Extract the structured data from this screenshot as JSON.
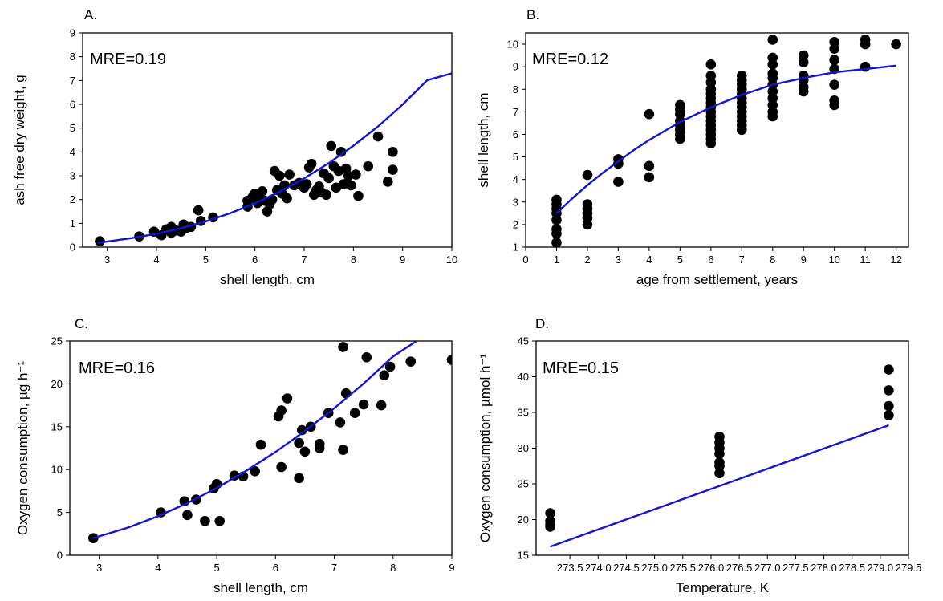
{
  "chart_data": [
    {
      "type": "scatter",
      "panel": "A.",
      "annotation": "MRE=0.19",
      "xlabel": "shell length, cm",
      "ylabel": "ash free dry weight, g",
      "xlim": [
        2.5,
        10
      ],
      "ylim": [
        0,
        9
      ],
      "xticks": [
        3,
        4,
        5,
        6,
        7,
        8,
        9,
        10
      ],
      "yticks": [
        0,
        1,
        2,
        3,
        4,
        5,
        6,
        7,
        8,
        9
      ],
      "colors": {
        "points": "#000000",
        "fit": "#1414d2"
      },
      "points": [
        [
          2.85,
          0.25
        ],
        [
          3.65,
          0.45
        ],
        [
          3.95,
          0.65
        ],
        [
          4.1,
          0.5
        ],
        [
          4.2,
          0.75
        ],
        [
          4.3,
          0.6
        ],
        [
          4.3,
          0.85
        ],
        [
          4.4,
          0.7
        ],
        [
          4.5,
          0.65
        ],
        [
          4.55,
          0.95
        ],
        [
          4.6,
          0.8
        ],
        [
          4.7,
          0.85
        ],
        [
          4.85,
          1.55
        ],
        [
          4.9,
          1.1
        ],
        [
          5.15,
          1.25
        ],
        [
          5.85,
          1.7
        ],
        [
          5.85,
          1.95
        ],
        [
          5.95,
          2.1
        ],
        [
          6.0,
          2.25
        ],
        [
          6.05,
          1.85
        ],
        [
          6.1,
          2.1
        ],
        [
          6.15,
          2.35
        ],
        [
          6.2,
          1.95
        ],
        [
          6.25,
          1.5
        ],
        [
          6.3,
          1.8
        ],
        [
          6.35,
          2.0
        ],
        [
          6.4,
          3.2
        ],
        [
          6.45,
          2.4
        ],
        [
          6.5,
          3.0
        ],
        [
          6.55,
          2.25
        ],
        [
          6.6,
          2.6
        ],
        [
          6.65,
          2.05
        ],
        [
          6.7,
          3.05
        ],
        [
          6.8,
          2.6
        ],
        [
          6.9,
          2.7
        ],
        [
          7.0,
          2.5
        ],
        [
          7.05,
          2.65
        ],
        [
          7.1,
          3.35
        ],
        [
          7.15,
          3.5
        ],
        [
          7.2,
          2.2
        ],
        [
          7.25,
          2.4
        ],
        [
          7.3,
          2.55
        ],
        [
          7.35,
          2.3
        ],
        [
          7.4,
          3.1
        ],
        [
          7.45,
          2.2
        ],
        [
          7.5,
          2.9
        ],
        [
          7.55,
          4.25
        ],
        [
          7.6,
          3.4
        ],
        [
          7.65,
          2.5
        ],
        [
          7.7,
          3.2
        ],
        [
          7.75,
          4.0
        ],
        [
          7.8,
          2.65
        ],
        [
          7.85,
          3.3
        ],
        [
          7.9,
          3.0
        ],
        [
          7.95,
          2.6
        ],
        [
          8.05,
          3.05
        ],
        [
          8.1,
          2.15
        ],
        [
          8.3,
          3.4
        ],
        [
          8.5,
          4.65
        ],
        [
          8.7,
          2.75
        ],
        [
          8.8,
          4.0
        ],
        [
          8.8,
          3.25
        ]
      ],
      "fit": {
        "x": [
          2.8,
          3.5,
          4,
          4.5,
          5,
          5.5,
          6,
          6.5,
          7,
          7.5,
          8,
          8.5,
          9,
          9.5,
          10
        ],
        "y": [
          0.18,
          0.38,
          0.56,
          0.8,
          1.08,
          1.43,
          1.84,
          2.33,
          2.89,
          3.53,
          4.26,
          5.07,
          5.99,
          7.01,
          7.3
        ]
      }
    },
    {
      "type": "scatter",
      "panel": "B.",
      "annotation": "MRE=0.12",
      "xlabel": "age from settlement, years",
      "ylabel": "shell length, cm",
      "xlim": [
        0,
        12.4
      ],
      "ylim": [
        1,
        10.5
      ],
      "xticks": [
        0,
        1,
        2,
        3,
        4,
        5,
        6,
        7,
        8,
        9,
        10,
        11,
        12
      ],
      "yticks": [
        1,
        2,
        3,
        4,
        5,
        6,
        7,
        8,
        9,
        10
      ],
      "colors": {
        "points": "#000000",
        "fit": "#1414d2"
      },
      "points": [
        [
          1,
          1.2
        ],
        [
          1,
          1.6
        ],
        [
          1,
          1.8
        ],
        [
          1,
          2.2
        ],
        [
          1,
          2.5
        ],
        [
          1,
          2.7
        ],
        [
          1,
          2.9
        ],
        [
          1,
          3.1
        ],
        [
          2,
          2.0
        ],
        [
          2,
          2.3
        ],
        [
          2,
          2.5
        ],
        [
          2,
          2.7
        ],
        [
          2,
          2.9
        ],
        [
          2,
          4.2
        ],
        [
          3,
          3.9
        ],
        [
          3,
          4.7
        ],
        [
          3,
          4.9
        ],
        [
          4,
          4.1
        ],
        [
          4,
          4.6
        ],
        [
          4,
          6.9
        ],
        [
          5,
          5.8
        ],
        [
          5,
          6.0
        ],
        [
          5,
          6.2
        ],
        [
          5,
          6.4
        ],
        [
          5,
          6.6
        ],
        [
          5,
          6.9
        ],
        [
          5,
          7.1
        ],
        [
          5,
          7.3
        ],
        [
          6,
          5.6
        ],
        [
          6,
          5.8
        ],
        [
          6,
          6.0
        ],
        [
          6,
          6.2
        ],
        [
          6,
          6.4
        ],
        [
          6,
          6.6
        ],
        [
          6,
          6.8
        ],
        [
          6,
          7.0
        ],
        [
          6,
          7.2
        ],
        [
          6,
          7.4
        ],
        [
          6,
          7.6
        ],
        [
          6,
          7.8
        ],
        [
          6,
          8.0
        ],
        [
          6,
          8.3
        ],
        [
          6,
          8.6
        ],
        [
          6,
          9.1
        ],
        [
          7,
          6.2
        ],
        [
          7,
          6.4
        ],
        [
          7,
          6.6
        ],
        [
          7,
          6.8
        ],
        [
          7,
          7.0
        ],
        [
          7,
          7.2
        ],
        [
          7,
          7.4
        ],
        [
          7,
          7.6
        ],
        [
          7,
          7.8
        ],
        [
          7,
          8.0
        ],
        [
          7,
          8.2
        ],
        [
          7,
          8.4
        ],
        [
          7,
          8.6
        ],
        [
          8,
          6.8
        ],
        [
          8,
          7.0
        ],
        [
          8,
          7.3
        ],
        [
          8,
          7.6
        ],
        [
          8,
          7.9
        ],
        [
          8,
          8.2
        ],
        [
          8,
          8.5
        ],
        [
          8,
          8.7
        ],
        [
          8,
          9.1
        ],
        [
          8,
          9.4
        ],
        [
          8,
          10.2
        ],
        [
          9,
          7.9
        ],
        [
          9,
          8.1
        ],
        [
          9,
          8.4
        ],
        [
          9,
          8.6
        ],
        [
          9,
          9.2
        ],
        [
          9,
          9.5
        ],
        [
          10,
          7.3
        ],
        [
          10,
          7.5
        ],
        [
          10,
          8.2
        ],
        [
          10,
          8.9
        ],
        [
          10,
          9.3
        ],
        [
          10,
          9.8
        ],
        [
          10,
          10.1
        ],
        [
          11,
          9.0
        ],
        [
          11,
          10.0
        ],
        [
          11,
          10.2
        ],
        [
          12,
          10.0
        ]
      ],
      "fit": {
        "x": [
          1,
          1.5,
          2,
          2.5,
          3,
          3.5,
          4,
          5,
          6,
          7,
          8,
          9,
          10,
          11,
          12
        ],
        "y": [
          2.5,
          3.15,
          3.75,
          4.3,
          4.8,
          5.3,
          5.75,
          6.55,
          7.2,
          7.75,
          8.2,
          8.5,
          8.75,
          8.9,
          9.05
        ]
      }
    },
    {
      "type": "scatter",
      "panel": "C.",
      "annotation": "MRE=0.16",
      "xlabel": "shell length, cm",
      "ylabel": "Oxygen consumption, µg h⁻¹",
      "xlim": [
        2.5,
        9
      ],
      "ylim": [
        0,
        25
      ],
      "xticks": [
        3,
        4,
        5,
        6,
        7,
        8,
        9
      ],
      "yticks": [
        0,
        5,
        10,
        15,
        20,
        25
      ],
      "colors": {
        "points": "#000000",
        "fit": "#1414d2"
      },
      "points": [
        [
          2.9,
          2.0
        ],
        [
          4.05,
          5.0
        ],
        [
          4.45,
          6.3
        ],
        [
          4.5,
          4.7
        ],
        [
          4.65,
          6.5
        ],
        [
          4.8,
          4.0
        ],
        [
          4.95,
          7.8
        ],
        [
          5.0,
          8.3
        ],
        [
          5.05,
          4.0
        ],
        [
          5.3,
          9.3
        ],
        [
          5.45,
          9.2
        ],
        [
          5.65,
          9.8
        ],
        [
          5.75,
          12.9
        ],
        [
          6.05,
          16.2
        ],
        [
          6.1,
          10.3
        ],
        [
          6.1,
          16.9
        ],
        [
          6.2,
          18.3
        ],
        [
          6.4,
          13.1
        ],
        [
          6.4,
          9.0
        ],
        [
          6.45,
          14.6
        ],
        [
          6.5,
          12.1
        ],
        [
          6.6,
          15.0
        ],
        [
          6.75,
          13.0
        ],
        [
          6.75,
          12.5
        ],
        [
          6.9,
          16.6
        ],
        [
          7.1,
          15.5
        ],
        [
          7.15,
          12.3
        ],
        [
          7.15,
          24.3
        ],
        [
          7.2,
          18.9
        ],
        [
          7.35,
          16.6
        ],
        [
          7.5,
          17.6
        ],
        [
          7.55,
          23.1
        ],
        [
          7.8,
          17.5
        ],
        [
          7.85,
          21.0
        ],
        [
          7.95,
          22.0
        ],
        [
          8.3,
          22.6
        ],
        [
          9.0,
          22.8
        ]
      ],
      "fit": {
        "x": [
          2.9,
          3.5,
          4,
          4.5,
          5,
          5.5,
          6,
          6.5,
          7,
          7.5,
          8,
          8.4
        ],
        "y": [
          2.0,
          3.25,
          4.55,
          6.1,
          7.85,
          9.85,
          12.05,
          14.5,
          17.15,
          20.05,
          23.2,
          25.0
        ]
      }
    },
    {
      "type": "scatter",
      "panel": "D.",
      "annotation": "MRE=0.15",
      "xlabel": "Temperature, K",
      "ylabel": "Oxygen consumption, µmol h⁻¹",
      "xlim": [
        272.9,
        279.5
      ],
      "ylim": [
        15,
        45
      ],
      "xticks": [
        "273.5",
        "274.0",
        "274.5",
        "275.0",
        "275.5",
        "276.0",
        "276.5",
        "277.0",
        "277.5",
        "278.0",
        "278.5",
        "279.0",
        "279.5"
      ],
      "yticks": [
        15,
        20,
        25,
        30,
        35,
        40,
        45
      ],
      "colors": {
        "points": "#000000",
        "fit": "#1414d2"
      },
      "points": [
        [
          273.15,
          20.9
        ],
        [
          273.15,
          19.8
        ],
        [
          273.15,
          19.3
        ],
        [
          273.15,
          19.0
        ],
        [
          276.15,
          31.6
        ],
        [
          276.15,
          30.8
        ],
        [
          276.15,
          30.0
        ],
        [
          276.15,
          29.2
        ],
        [
          276.15,
          28.0
        ],
        [
          276.15,
          27.5
        ],
        [
          276.15,
          26.5
        ],
        [
          279.15,
          41.0
        ],
        [
          279.15,
          38.1
        ],
        [
          279.15,
          35.9
        ],
        [
          279.15,
          34.6
        ]
      ],
      "fit": {
        "x": [
          273.15,
          279.15
        ],
        "y": [
          16.2,
          33.2
        ]
      }
    }
  ]
}
